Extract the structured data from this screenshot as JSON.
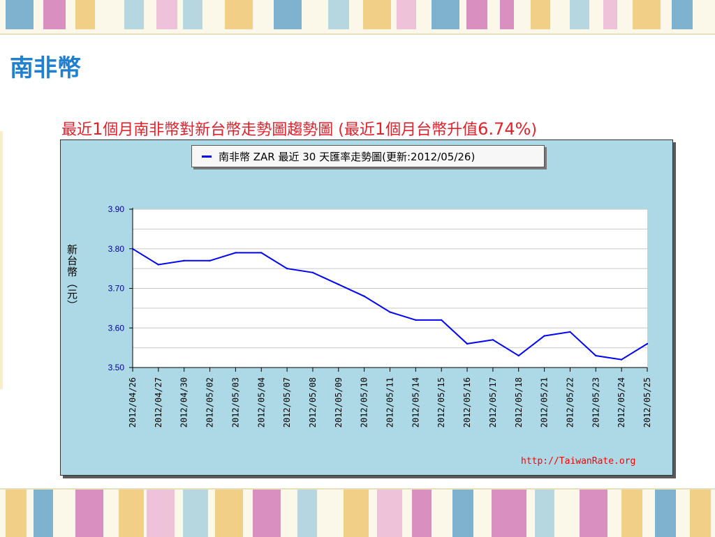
{
  "slide": {
    "title": "南非幣",
    "heading_prefix": "最近",
    "heading_num1": "1",
    "heading_mid": "個月南非幣對新台幣走勢圖趨勢圖 (最近",
    "heading_num2": "1",
    "heading_mid2": "個月台幣升值",
    "heading_pct": "6.74%",
    "heading_suffix": ")",
    "watermark": "http://TaiwanRate.org"
  },
  "colors": {
    "title": "#1f7fd0",
    "heading": "#e4202a",
    "line": "#0000ff",
    "chart_bg": "#add8e6",
    "plot_bg": "#ffffff",
    "tick_label": "#0000a0",
    "stripes": [
      "#7fb2cf",
      "#d98fc0",
      "#f2cf86",
      "#b6d7e0",
      "#eec3d9",
      "#cdd6e8"
    ]
  },
  "chart_data": {
    "type": "line",
    "legend": "南非幣 ZAR 最近 30 天匯率走勢圖(更新:2012/05/26)",
    "ylabel": "新台幣（元）",
    "ylim": [
      3.5,
      3.9
    ],
    "yticks": [
      "3.50",
      "3.60",
      "3.70",
      "3.80",
      "3.90"
    ],
    "grid": true,
    "legend_placement": "top-center",
    "categories": [
      "2012/04/26",
      "2012/04/27",
      "2012/04/30",
      "2012/05/02",
      "2012/05/03",
      "2012/05/04",
      "2012/05/07",
      "2012/05/08",
      "2012/05/09",
      "2012/05/10",
      "2012/05/11",
      "2012/05/14",
      "2012/05/15",
      "2012/05/16",
      "2012/05/17",
      "2012/05/18",
      "2012/05/21",
      "2012/05/22",
      "2012/05/23",
      "2012/05/24",
      "2012/05/25"
    ],
    "series": [
      {
        "name": "南非幣 ZAR",
        "values": [
          3.8,
          3.76,
          3.77,
          3.77,
          3.79,
          3.79,
          3.75,
          3.74,
          3.71,
          3.68,
          3.64,
          3.62,
          3.62,
          3.56,
          3.57,
          3.53,
          3.58,
          3.59,
          3.53,
          3.52,
          3.56
        ]
      }
    ]
  }
}
